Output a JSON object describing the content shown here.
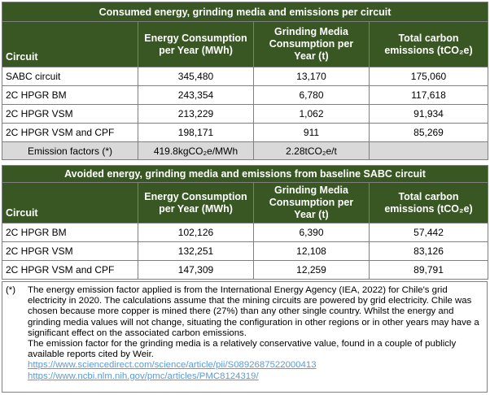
{
  "table1": {
    "title": "Consumed energy, grinding media and emissions per circuit",
    "headers": [
      "Circuit",
      "Energy Consumption per Year (MWh)",
      "Grinding Media Consumption per Year (t)",
      "Total carbon emissions (tCO₂e)"
    ],
    "rows": [
      [
        "SABC circuit",
        "345,480",
        "13,170",
        "175,060"
      ],
      [
        "2C HPGR BM",
        "243,354",
        "6,780",
        "117,618"
      ],
      [
        "2C HPGR VSM",
        "213,229",
        "1,062",
        "91,934"
      ],
      [
        "2C HPGR VSM and CPF",
        "198,171",
        "911",
        "85,269"
      ]
    ],
    "emission_factors": {
      "label": "Emission factors (*)",
      "energy": "419.8kgCO₂e/MWh",
      "media": "2.28tCO₂e/t",
      "carbon": ""
    }
  },
  "table2": {
    "title": "Avoided energy, grinding media and emissions from baseline SABC circuit",
    "headers": [
      "Circuit",
      "Energy Consumption per Year (MWh)",
      "Grinding Media Consumption per Year (t)",
      "Total carbon emissions (tCO₂e)"
    ],
    "rows": [
      [
        "2C HPGR BM",
        "102,126",
        "6,390",
        "57,442"
      ],
      [
        "2C HPGR VSM",
        "132,251",
        "12,108",
        "83,126"
      ],
      [
        "2C HPGR VSM and CPF",
        "147,309",
        "12,259",
        "89,791"
      ]
    ]
  },
  "notes": {
    "marker": "(*)",
    "paragraph1": "The energy emission factor applied is from the International Energy Agency (IEA, 2022) for Chile's grid electricity in 2020. The calculations assume that the mining circuits are powered by grid electricity. Chile was chosen because more copper is mined there (27%) than any other single country. Whilst the energy and grinding media values will not change, situating the configuration in other regions or in other years may have a significant effect on the associated carbon emissions.",
    "paragraph2": "The emission factor for the grinding media is a relatively conservative value, found in a couple of publicly available reports cited by Weir.",
    "link1": "https://www.sciencedirect.com/science/article/pii/S0892687522000413",
    "link2": "https://www.ncbi.nlm.nih.gov/pmc/articles/PMC8124319/"
  }
}
